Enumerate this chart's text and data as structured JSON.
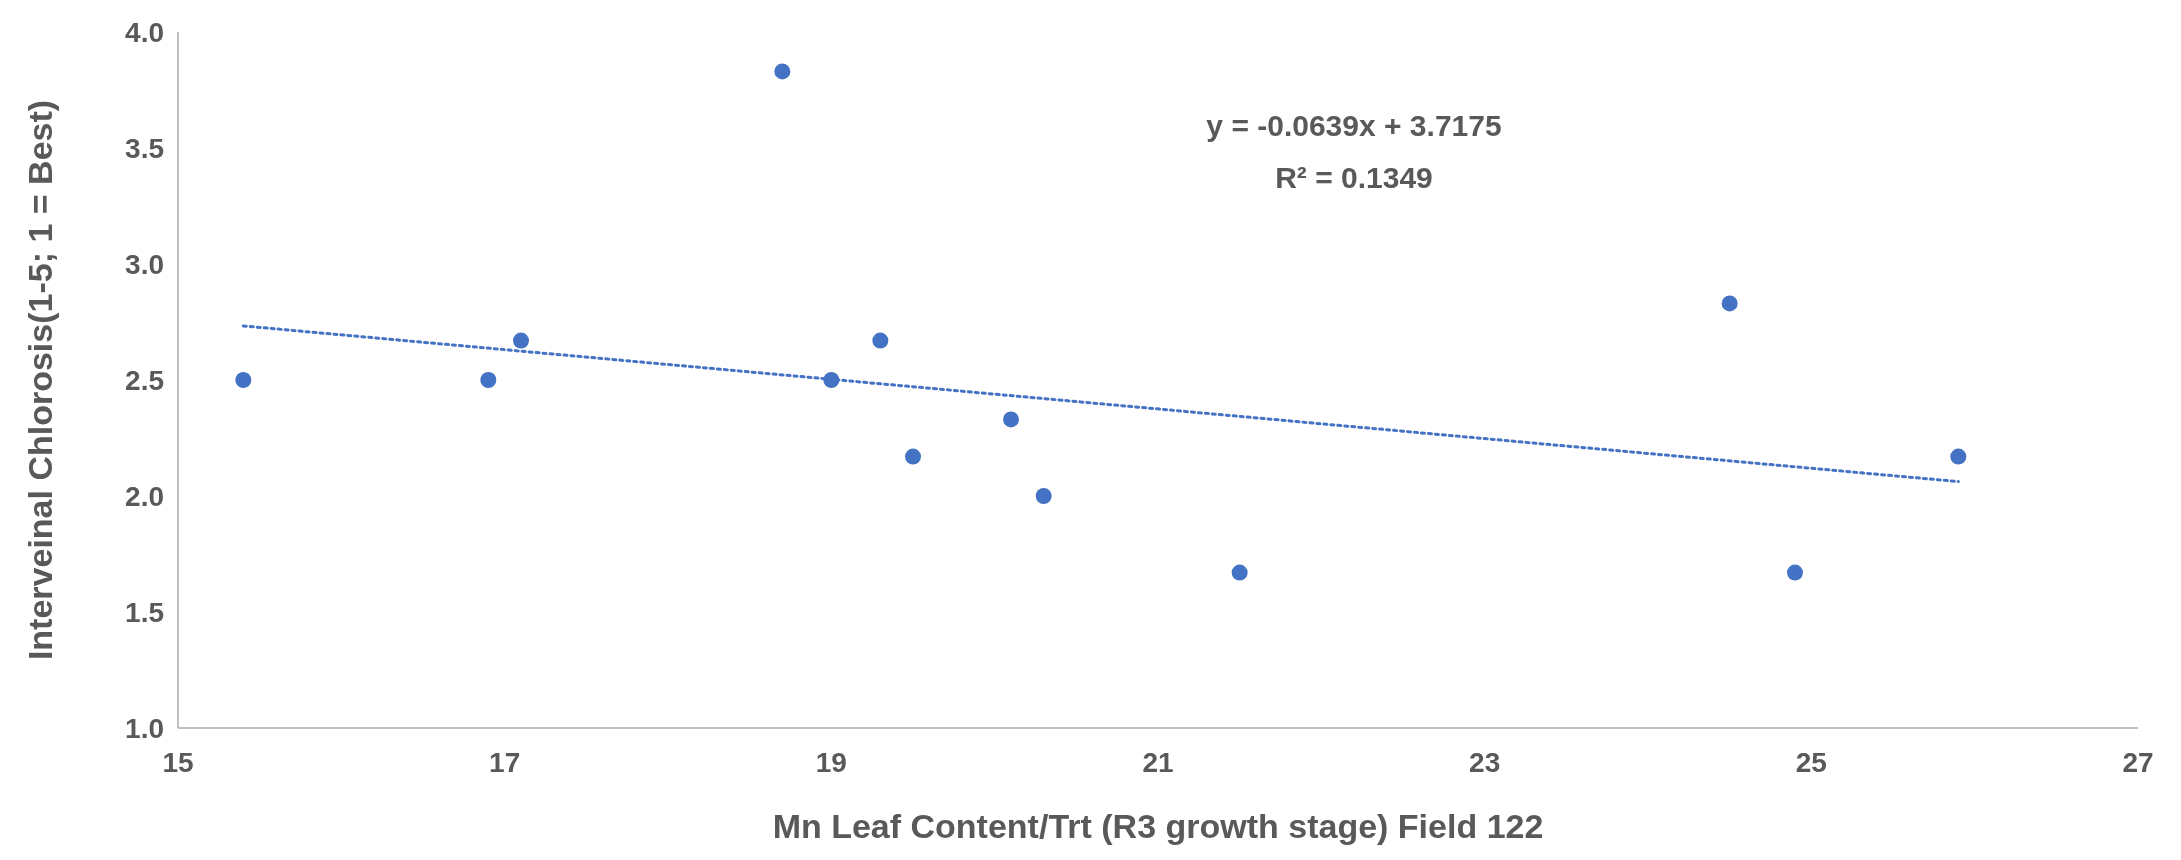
{
  "chart_data": {
    "type": "scatter",
    "xlabel": "Mn Leaf Content/Trt (R3 growth stage) Field 122",
    "ylabel": "Interveinal Chlorosis(1-5; 1 = Best)",
    "annotations": [
      "y = -0.0639x + 3.7175",
      "R² = 0.1349"
    ],
    "xlim": [
      15,
      27
    ],
    "xticks": [
      15,
      17,
      19,
      21,
      23,
      25,
      27
    ],
    "ylim": [
      1,
      4
    ],
    "yticks": [
      {
        "value": 1,
        "label": "1.0"
      },
      {
        "value": 1.5,
        "label": "1.5"
      },
      {
        "value": 2,
        "label": "2.0"
      },
      {
        "value": 2.5,
        "label": "2.5"
      },
      {
        "value": 3,
        "label": "3.0"
      },
      {
        "value": 3.5,
        "label": "3.5"
      },
      {
        "value": 4,
        "label": "4.0"
      }
    ],
    "grid": false,
    "series": [
      {
        "marker": "circle",
        "color": "#4472c4",
        "x": [
          15.4,
          16.9,
          17.1,
          18.7,
          19.0,
          19.3,
          19.5,
          20.1,
          20.3,
          21.5,
          24.5,
          24.9,
          25.9
        ],
        "values": [
          2.5,
          2.5,
          2.67,
          3.83,
          2.5,
          2.67,
          2.17,
          2.33,
          2.0,
          1.67,
          2.83,
          1.67,
          2.17
        ]
      },
      {
        "type": "line",
        "marker": "none",
        "color": "#4472c4",
        "line_style": "dotted",
        "x": [
          15.4,
          25.9
        ],
        "values": [
          2.733,
          2.062
        ]
      }
    ]
  }
}
